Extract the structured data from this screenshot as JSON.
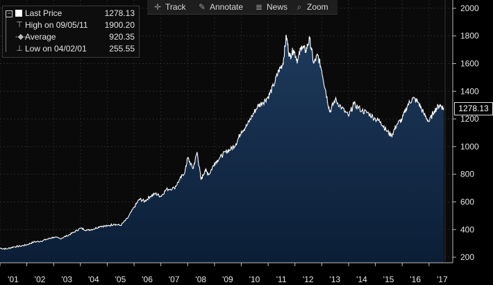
{
  "toolbar": {
    "items": [
      {
        "label": "Track",
        "icon": "crosshair-icon"
      },
      {
        "label": "Annotate",
        "icon": "pencil-icon"
      },
      {
        "label": "News",
        "icon": "news-icon"
      },
      {
        "label": "Zoom",
        "icon": "magnifier-icon"
      }
    ]
  },
  "legend": {
    "rows": [
      {
        "label": "Last Price",
        "value": "1278.13"
      },
      {
        "label": "High on 09/05/11",
        "value": "1900.20"
      },
      {
        "label": "Average",
        "value": "920.35"
      },
      {
        "label": "Low on 04/02/01",
        "value": "255.55"
      }
    ]
  },
  "last_price_tag": "1278.13",
  "colors": {
    "line": "#ffffff",
    "fill_top": "#1e3a5c",
    "fill_bottom": "#0b1e36",
    "accent_box": "#ffffff"
  },
  "chart_data": {
    "type": "area",
    "title": "",
    "xlabel": "",
    "ylabel": "",
    "ylim": [
      100,
      2050
    ],
    "xlim": [
      2001.0,
      2017.7
    ],
    "y_ticks": [
      200,
      400,
      600,
      800,
      1000,
      1200,
      1400,
      1600,
      1800,
      2000
    ],
    "x_tick_labels": [
      "'01",
      "'02",
      "'03",
      "'04",
      "'05",
      "'06",
      "'07",
      "'08",
      "'09",
      "'10",
      "'11",
      "'12",
      "'13",
      "'14",
      "'15",
      "'16",
      "'17"
    ],
    "grid": true,
    "series": [
      {
        "x": [
          2001.0,
          2001.25,
          2001.5,
          2001.75,
          2002.0,
          2002.25,
          2002.5,
          2002.75,
          2003.0,
          2003.25,
          2003.5,
          2003.75,
          2004.0,
          2004.25,
          2004.5,
          2004.75,
          2005.0,
          2005.25,
          2005.5,
          2005.75,
          2006.0,
          2006.2,
          2006.4,
          2006.6,
          2006.8,
          2007.0,
          2007.2,
          2007.5,
          2007.7,
          2007.9,
          2008.0,
          2008.2,
          2008.35,
          2008.5,
          2008.65,
          2008.8,
          2009.0,
          2009.2,
          2009.4,
          2009.6,
          2009.8,
          2010.0,
          2010.2,
          2010.4,
          2010.6,
          2010.8,
          2011.0,
          2011.2,
          2011.4,
          2011.55,
          2011.68,
          2011.8,
          2011.95,
          2012.1,
          2012.25,
          2012.4,
          2012.55,
          2012.7,
          2012.85,
          2013.0,
          2013.15,
          2013.3,
          2013.5,
          2013.75,
          2014.0,
          2014.2,
          2014.5,
          2014.75,
          2015.0,
          2015.2,
          2015.4,
          2015.6,
          2015.8,
          2016.0,
          2016.2,
          2016.4,
          2016.6,
          2016.8,
          2017.0,
          2017.2,
          2017.4,
          2017.55
        ],
        "y": [
          265,
          260,
          275,
          280,
          290,
          310,
          315,
          330,
          345,
          335,
          355,
          380,
          410,
          395,
          405,
          425,
          425,
          440,
          430,
          480,
          560,
          620,
          605,
          640,
          660,
          640,
          690,
          700,
          760,
          820,
          920,
          840,
          960,
          760,
          830,
          800,
          880,
          920,
          960,
          980,
          1020,
          1110,
          1150,
          1220,
          1290,
          1320,
          1360,
          1440,
          1550,
          1600,
          1800,
          1650,
          1700,
          1620,
          1730,
          1690,
          1780,
          1600,
          1660,
          1550,
          1400,
          1250,
          1340,
          1280,
          1220,
          1310,
          1260,
          1240,
          1200,
          1180,
          1120,
          1080,
          1160,
          1200,
          1300,
          1350,
          1320,
          1240,
          1180,
          1260,
          1300,
          1278
        ]
      }
    ]
  }
}
